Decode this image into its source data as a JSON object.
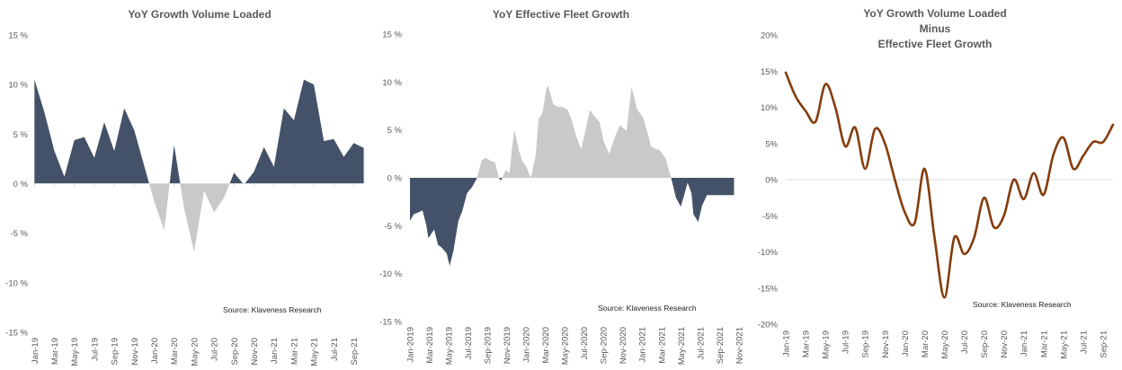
{
  "colors": {
    "positive_fill_chart1": "#435268",
    "negative_fill_chart1": "#c9c9c9",
    "positive_fill_chart2": "#c9c9c9",
    "negative_fill_chart2": "#435268",
    "line_chart3": "#843c0c",
    "zero_line": "#d9d9d9"
  },
  "chart_data": [
    {
      "id": "chart1",
      "type": "area",
      "title": [
        "YoY Growth Volume Loaded"
      ],
      "xlabel": "",
      "ylabel": "",
      "ylim": [
        -15,
        15
      ],
      "yticks": [
        15,
        10,
        5,
        0,
        -5,
        -10,
        -15
      ],
      "ytick_labels": [
        "15 %",
        "10 %",
        "5 %",
        "0 %",
        "-5 %",
        "-10 %",
        "-15 %"
      ],
      "x": [
        "Jan-19",
        "Feb-19",
        "Mar-19",
        "Apr-19",
        "May-19",
        "Jun-19",
        "Jul-19",
        "Aug-19",
        "Sep-19",
        "Oct-19",
        "Nov-19",
        "Dec-19",
        "Jan-20",
        "Feb-20",
        "Mar-20",
        "Apr-20",
        "May-20",
        "Jun-20",
        "Jul-20",
        "Aug-20",
        "Sep-20",
        "Oct-20",
        "Nov-20",
        "Dec-20",
        "Jan-21",
        "Feb-21",
        "Mar-21",
        "Apr-21",
        "May-21",
        "Jun-21",
        "Jul-21",
        "Aug-21",
        "Sep-21",
        "Oct-21"
      ],
      "xtick_labels": [
        "Jan-19",
        "Mar-19",
        "May-19",
        "Jul-19",
        "Sep-19",
        "Nov-19",
        "Jan-20",
        "Mar-20",
        "May-20",
        "Jul-20",
        "Sep-20",
        "Nov-20",
        "Jan-21",
        "Mar-21",
        "May-21",
        "Jul-21",
        "Sep-21"
      ],
      "values": [
        10.5,
        7.2,
        3.3,
        0.7,
        4.4,
        4.7,
        2.6,
        6.2,
        3.3,
        7.6,
        5.4,
        1.8,
        -1.8,
        -4.7,
        3.9,
        -2.5,
        -6.9,
        -0.7,
        -2.9,
        -1.4,
        1.1,
        -0.1,
        1.2,
        3.7,
        1.7,
        7.6,
        6.4,
        10.5,
        10.0,
        4.3,
        4.5,
        2.7,
        4.1,
        3.6
      ],
      "source": "Source: Klaveness Research",
      "grid": false
    },
    {
      "id": "chart2",
      "type": "area",
      "title": [
        "YoY Effective Fleet Growth"
      ],
      "xlabel": "",
      "ylabel": "",
      "ylim": [
        -15,
        15
      ],
      "yticks": [
        15,
        10,
        5,
        0,
        -5,
        -10,
        -15
      ],
      "ytick_labels": [
        "15 %",
        "10 %",
        "5 %",
        "0 %",
        "-5 %",
        "-10 %",
        "-15 %"
      ],
      "x_start": "Jan-2019",
      "x_end": "Nov-2021",
      "xtick_labels": [
        "Jan-2019",
        "Mar-2019",
        "May-2019",
        "Jul-2019",
        "Sep-2019",
        "Nov-2019",
        "Jan-2020",
        "Mar-2020",
        "May-2020",
        "Jul-2020",
        "Sep-2020",
        "Nov-2020",
        "Jan-2021",
        "Mar-2021",
        "May-2021",
        "Jul-2021",
        "Sep-2021",
        "Nov-2021"
      ],
      "series_month_index": [
        0,
        0.4,
        0.9,
        1.3,
        1.7,
        1.9,
        2.5,
        2.9,
        3.3,
        3.8,
        4.1,
        4.5,
        5.0,
        5.4,
        5.9,
        6.4,
        6.9,
        7.4,
        7.8,
        8.3,
        8.8,
        9.2,
        9.4,
        9.9,
        10.3,
        10.5,
        10.8,
        11.3,
        11.6,
        12.0,
        12.5,
        13.0,
        13.3,
        13.7,
        14.1,
        14.3,
        14.8,
        15.3,
        15.8,
        16.3,
        16.7,
        17.2,
        17.7,
        18.2,
        18.6,
        19.0,
        19.6,
        20.0,
        20.6,
        21.2,
        21.7,
        22.4,
        22.9,
        23.5,
        24.1,
        24.6,
        24.9,
        25.4,
        25.8,
        26.4,
        27.0,
        27.5,
        28.0,
        28.4,
        28.7,
        29.1,
        29.3,
        29.8,
        30.2,
        30.7,
        31.2,
        31.6,
        32.1,
        32.5,
        32.8,
        33.2,
        33.5
      ],
      "values": [
        -4.5,
        -3.8,
        -3.6,
        -3.4,
        -5.0,
        -6.3,
        -5.4,
        -7.0,
        -7.3,
        -7.9,
        -9.2,
        -7.6,
        -4.5,
        -3.5,
        -1.6,
        -1.0,
        -0.1,
        1.8,
        2.1,
        1.8,
        1.6,
        0.0,
        -0.3,
        0.8,
        0.5,
        2.7,
        5.0,
        2.7,
        1.8,
        1.2,
        0.0,
        2.4,
        6.1,
        6.8,
        9.3,
        9.6,
        7.7,
        7.4,
        7.4,
        7.1,
        6.1,
        4.3,
        3.0,
        5.2,
        7.1,
        6.5,
        5.8,
        3.9,
        2.5,
        4.3,
        5.5,
        4.9,
        9.5,
        7.1,
        6.3,
        4.6,
        3.3,
        3.0,
        2.9,
        2.1,
        0.0,
        -2.1,
        -3.0,
        -1.6,
        -0.5,
        -1.6,
        -3.8,
        -4.6,
        -2.9,
        -1.8,
        -1.8,
        -1.8,
        -1.8,
        -1.8,
        -1.8,
        -1.8,
        -1.8
      ],
      "source": "Source: Klaveness Research",
      "grid": false
    },
    {
      "id": "chart3",
      "type": "line",
      "title": [
        "YoY Growth Volume Loaded",
        "Minus",
        "Effective Fleet Growth"
      ],
      "xlabel": "",
      "ylabel": "",
      "ylim": [
        -20,
        20
      ],
      "yticks": [
        20,
        15,
        10,
        5,
        0,
        -5,
        -10,
        -15,
        -20
      ],
      "ytick_labels": [
        "20%",
        "15%",
        "10%",
        "5%",
        "0%",
        "-5%",
        "-10%",
        "-15%",
        "-20%"
      ],
      "x": [
        "Jan-19",
        "Feb-19",
        "Mar-19",
        "Apr-19",
        "May-19",
        "Jun-19",
        "Jul-19",
        "Aug-19",
        "Sep-19",
        "Oct-19",
        "Nov-19",
        "Dec-19",
        "Jan-20",
        "Feb-20",
        "Mar-20",
        "Apr-20",
        "May-20",
        "Jun-20",
        "Jul-20",
        "Aug-20",
        "Sep-20",
        "Oct-20",
        "Nov-20",
        "Dec-20",
        "Jan-21",
        "Feb-21",
        "Mar-21",
        "Apr-21",
        "May-21",
        "Jun-21",
        "Jul-21",
        "Aug-21",
        "Sep-21",
        "Oct-21"
      ],
      "xtick_labels": [
        "Jan-19",
        "Mar-19",
        "May-19",
        "Jul-19",
        "Sep-19",
        "Nov-19",
        "Jan-20",
        "Mar-20",
        "May-20",
        "Jul-20",
        "Sep-20",
        "Nov-20",
        "Jan-21",
        "Mar-21",
        "May-21",
        "Jul-21",
        "Sep-21"
      ],
      "values": [
        14.8,
        11.5,
        9.5,
        8.0,
        13.2,
        10.0,
        4.6,
        7.2,
        1.5,
        7.0,
        5.0,
        0.0,
        -4.5,
        -6.0,
        1.5,
        -8.0,
        -16.3,
        -8.0,
        -10.3,
        -8.0,
        -2.5,
        -6.6,
        -5.0,
        0.0,
        -2.7,
        0.9,
        -2.1,
        3.5,
        5.8,
        1.5,
        3.3,
        5.2,
        5.2,
        7.6
      ],
      "source": "Source: Klaveness Research",
      "grid": false,
      "zero_line": true
    }
  ]
}
